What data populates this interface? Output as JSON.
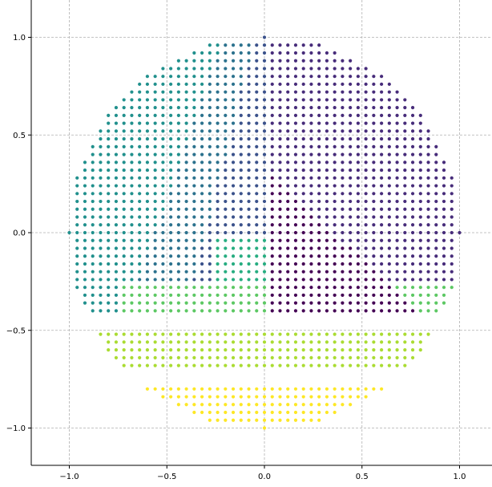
{
  "chart_data": {
    "type": "scatter",
    "title": "",
    "xlabel": "",
    "ylabel": "",
    "xlim": [
      -1.17,
      1.17
    ],
    "ylim": [
      -1.19,
      1.19
    ],
    "grid": true,
    "legend": "none",
    "step": 0.04,
    "x_ticks": [
      -1.0,
      -0.5,
      0.0,
      0.5,
      1.0
    ],
    "y_ticks": [
      -1.0,
      -0.5,
      0.0,
      0.5,
      1.0
    ],
    "x_tick_labels": [
      "−1.0",
      "−0.5",
      "0.0",
      "0.5",
      "1.0"
    ],
    "y_tick_labels": [
      "−1.0",
      "−0.5",
      "0.0",
      "0.5",
      "1.0"
    ],
    "colors": {
      "series1": "#440154",
      "series2": "#472c7a",
      "series3": "#3b528b",
      "series4": "#2c728e",
      "series5": "#21908d",
      "series6": "#27ad81",
      "series7": "#5cc863",
      "series8": "#aadc32",
      "series9": "#fde725",
      "grid": "#b0b0b0"
    },
    "series": [
      {
        "key": "series1",
        "region": "purple wedge (right of center, y 0.28 to -0.40)"
      },
      {
        "key": "series2",
        "region": "indigo sector (upper right, y 0.96 to 0)"
      },
      {
        "key": "series3",
        "region": "blue sector (upper middle, x -0.32 to 0)"
      },
      {
        "key": "series4",
        "region": "blue-teal sector (upper left, x -0.68 to -0.34)"
      },
      {
        "key": "series5",
        "region": "teal sector (left, x -1.0 to -0.56)"
      },
      {
        "key": "series6",
        "region": "green-teal strip (y 0 to -0.16)"
      },
      {
        "key": "series7",
        "region": "light green band (y -0.28 to -0.40)"
      },
      {
        "key": "series8",
        "region": "yellow-green band (y -0.52 to -0.68)"
      },
      {
        "key": "series9",
        "region": "yellow cap (y -0.80 to -1.0)"
      }
    ]
  }
}
